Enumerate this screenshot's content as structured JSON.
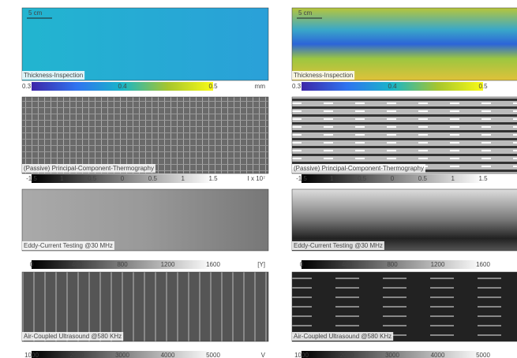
{
  "columns": [
    {
      "scale_bar": "5 cm",
      "panels": [
        {
          "label": "Thickness-Inspection",
          "colorbar": [
            "0.3",
            "0.4",
            "0.5"
          ],
          "unit": "mm"
        },
        {
          "label": "(Passive) Principal-Component-Thermography",
          "colorbar": [
            "-1.5",
            "1",
            "0.5",
            "0",
            "0.5",
            "1",
            "1.5"
          ],
          "unit": "I x 10⁷"
        },
        {
          "label": "Eddy-Current Testing @30 MHz",
          "colorbar": [
            "0",
            "400",
            "800",
            "1200",
            "1600"
          ],
          "unit": "[Y]"
        },
        {
          "label": "Air-Coupled Ultrasound @580 KHz",
          "colorbar": [
            "1000",
            "2000",
            "3000",
            "4000",
            "5000"
          ],
          "unit": "V"
        }
      ]
    },
    {
      "scale_bar": "5 cm",
      "panels": [
        {
          "label": "Thickness-Inspection",
          "colorbar": [
            "0.3",
            "0.4",
            "0.5"
          ]
        },
        {
          "label": "(Passive) Principal-Component-Thermography",
          "colorbar": [
            "-1.5",
            "1",
            "0.5",
            "0",
            "0.5",
            "1",
            "1.5"
          ]
        },
        {
          "label": "Eddy-Current Testing @30 MHz",
          "colorbar": [
            "0",
            "400",
            "800",
            "1200",
            "1600"
          ]
        },
        {
          "label": "Air-Coupled Ultrasound @580 KHz",
          "colorbar": [
            "1000",
            "2000",
            "3000",
            "4000",
            "5000"
          ]
        }
      ]
    }
  ]
}
